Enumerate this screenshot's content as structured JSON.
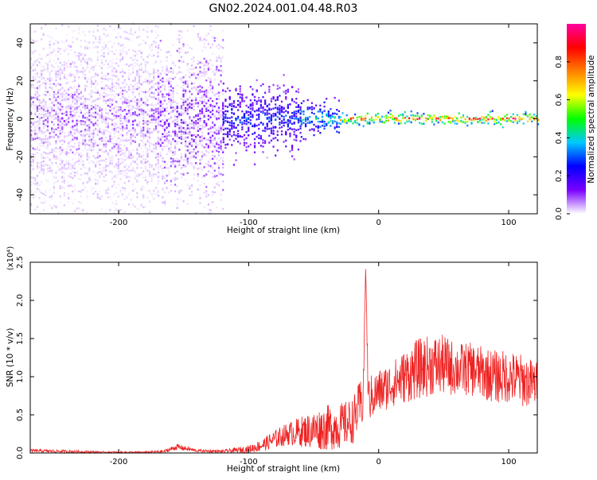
{
  "title": "GN02.2024.001.04.48.R03",
  "chart_data": [
    {
      "type": "heatmap",
      "title": "GN02.2024.001.04.48.R03",
      "xlabel": "Height of straight line (km)",
      "ylabel": "Frequency (Hz)",
      "xlim": [
        -268,
        122
      ],
      "ylim": [
        -50,
        50
      ],
      "x_ticks": [
        -200,
        -100,
        0,
        100
      ],
      "y_ticks": [
        -40,
        -20,
        0,
        20,
        40
      ],
      "colorbar": {
        "label": "Normalized spectral amplitude",
        "range": [
          0.0,
          1.0
        ],
        "ticks": [
          0.0,
          0.2,
          0.4,
          0.6,
          0.8
        ],
        "colors": [
          "#ffffff",
          "#7a00ff",
          "#0000ff",
          "#00c8ff",
          "#00ff00",
          "#ffff00",
          "#ff8000",
          "#ff0000",
          "#ff00a0"
        ]
      },
      "regions": [
        {
          "x_range": [
            -268,
            -170
          ],
          "freq_spread_hz": 50,
          "amplitude": 0.1
        },
        {
          "x_range": [
            -170,
            -120
          ],
          "freq_spread_hz": 40,
          "amplitude": 0.15
        },
        {
          "x_range": [
            -120,
            -60
          ],
          "freq_spread_hz": 15,
          "amplitude": 0.3
        },
        {
          "x_range": [
            -60,
            -30
          ],
          "freq_spread_hz": 8,
          "amplitude": 0.45
        },
        {
          "x_range": [
            -30,
            122
          ],
          "freq_spread_hz": 3,
          "amplitude": 0.85
        }
      ]
    },
    {
      "type": "line",
      "xlabel": "Height of straight line (km)",
      "ylabel": "SNR (10 * v/v)",
      "y_multiplier": "(x10⁴)",
      "xlim": [
        -268,
        122
      ],
      "ylim": [
        0,
        2.5
      ],
      "x_ticks": [
        -200,
        -100,
        0,
        100
      ],
      "y_ticks": [
        0.0,
        0.5,
        1.0,
        1.5,
        2.0,
        2.5
      ],
      "line_color": "#ee2222",
      "x": [
        -268,
        -240,
        -210,
        -180,
        -165,
        -155,
        -140,
        -120,
        -100,
        -90,
        -80,
        -70,
        -60,
        -50,
        -40,
        -30,
        -20,
        -12,
        -10,
        -8,
        0,
        10,
        20,
        30,
        40,
        50,
        60,
        70,
        80,
        90,
        100,
        110,
        122
      ],
      "y": [
        0.03,
        0.02,
        0.01,
        0.01,
        0.02,
        0.08,
        0.03,
        0.02,
        0.05,
        0.1,
        0.18,
        0.25,
        0.28,
        0.3,
        0.33,
        0.35,
        0.42,
        0.7,
        2.45,
        0.7,
        0.8,
        0.9,
        1.0,
        1.1,
        1.15,
        1.15,
        1.1,
        1.1,
        1.05,
        1.0,
        1.0,
        0.95,
        0.9
      ],
      "noise": [
        0.02,
        0.02,
        0.01,
        0.01,
        0.02,
        0.04,
        0.02,
        0.02,
        0.05,
        0.08,
        0.12,
        0.15,
        0.2,
        0.25,
        0.3,
        0.3,
        0.3,
        0.35,
        0.0,
        0.3,
        0.3,
        0.3,
        0.35,
        0.4,
        0.4,
        0.4,
        0.35,
        0.35,
        0.35,
        0.35,
        0.35,
        0.35,
        0.3
      ]
    }
  ]
}
